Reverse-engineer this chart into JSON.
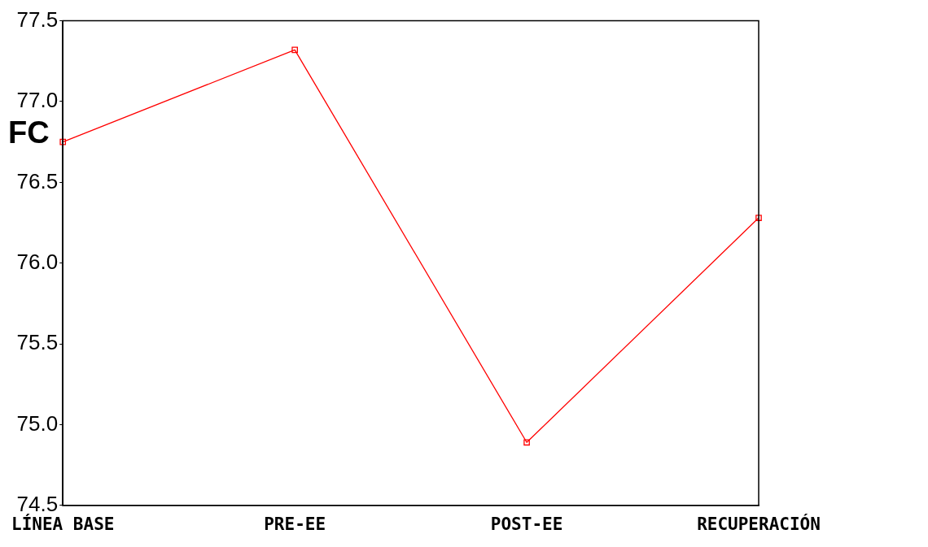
{
  "chart_data": {
    "type": "line",
    "ylabel": "FC",
    "categories": [
      "LÍNEA BASE",
      "PRE-EE",
      "POST-EE",
      "RECUPERACIÓN"
    ],
    "series": [
      {
        "color": "#ff0000",
        "values": [
          76.75,
          77.32,
          74.89,
          76.28
        ]
      }
    ],
    "ylim": [
      74.5,
      77.5
    ],
    "yticks": [
      {
        "value": 74.5,
        "label": "74.5"
      },
      {
        "value": 75,
        "label": "75.0"
      },
      {
        "value": 75.5,
        "label": "75.5"
      },
      {
        "value": 76,
        "label": "76.0"
      },
      {
        "value": 76.5,
        "label": "76.5"
      },
      {
        "value": 77,
        "label": "77.0"
      },
      {
        "value": 77.5,
        "label": "77.5"
      }
    ],
    "grid": false,
    "legend": false,
    "marker": "square",
    "line_style": "solid"
  }
}
